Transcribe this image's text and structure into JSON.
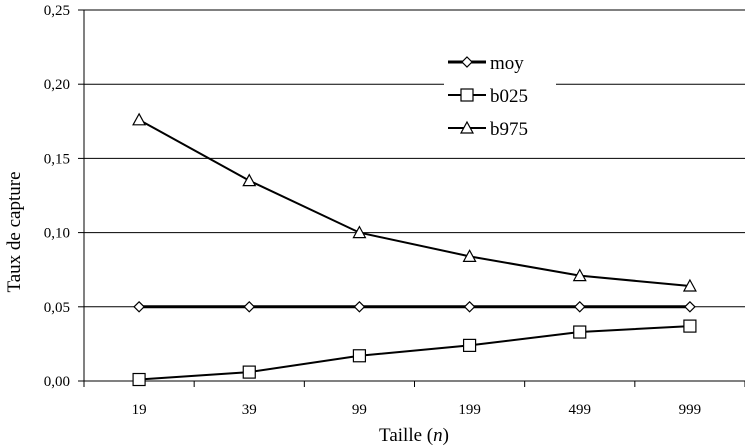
{
  "chart_data": {
    "type": "line",
    "categories": [
      "19",
      "39",
      "99",
      "199",
      "499",
      "999"
    ],
    "series": [
      {
        "name": "moy",
        "marker": "diamond",
        "values": [
          0.05,
          0.05,
          0.05,
          0.05,
          0.05,
          0.05
        ]
      },
      {
        "name": "b025",
        "marker": "square",
        "values": [
          0.001,
          0.006,
          0.017,
          0.024,
          0.033,
          0.037
        ]
      },
      {
        "name": "b975",
        "marker": "triangle",
        "values": [
          0.176,
          0.135,
          0.1,
          0.084,
          0.071,
          0.064
        ]
      }
    ],
    "ylim": [
      0,
      0.25
    ],
    "yticks": [
      0,
      0.05,
      0.1,
      0.15,
      0.2,
      0.25
    ],
    "ytick_labels": [
      "0,00",
      "0,05",
      "0,10",
      "0,15",
      "0,20",
      "0,25"
    ],
    "xlabel": "Taille (n)",
    "ylabel": "Taux de capture",
    "grid": "horizontal",
    "legend_position": "top-right",
    "colors": {
      "lines": "#000000",
      "grid": "#000000",
      "background": "#ffffff"
    }
  }
}
